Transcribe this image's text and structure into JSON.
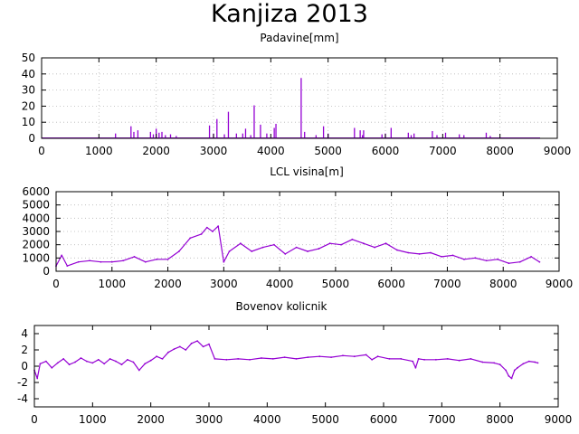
{
  "title": "Kanjiza 2013",
  "colors": {
    "series": "#9400d3",
    "axis": "#000000",
    "grid": "#b8b8b8"
  },
  "chart_data": [
    {
      "type": "bar",
      "subtitle": "Padavine[mm]",
      "xlim": [
        0,
        9000
      ],
      "ylim": [
        0,
        50
      ],
      "xticks": [
        0,
        1000,
        2000,
        3000,
        4000,
        5000,
        6000,
        7000,
        8000,
        9000
      ],
      "yticks": [
        0,
        10,
        20,
        30,
        40,
        50
      ],
      "grid": true,
      "series": [
        {
          "x": [
            1290,
            1560,
            1610,
            1680,
            1900,
            1950,
            2000,
            2050,
            2100,
            2160,
            2250,
            2350,
            2930,
            3000,
            3060,
            3190,
            3260,
            3400,
            3510,
            3560,
            3650,
            3710,
            3820,
            3930,
            4060,
            4090,
            4530,
            4590,
            4790,
            4920,
            5000,
            5460,
            5560,
            5600,
            5620,
            5940,
            6000,
            6100,
            6400,
            6450,
            6500,
            6820,
            6900,
            7050,
            7290,
            7370,
            7760,
            7830
          ],
          "y": [
            3,
            7.5,
            4,
            5,
            4,
            2.5,
            6,
            3.5,
            4,
            2,
            2.5,
            1.5,
            8,
            3,
            12,
            2.5,
            16.5,
            3,
            3,
            6,
            2,
            20.5,
            8.5,
            3,
            6.5,
            9,
            37.5,
            4,
            2,
            7.5,
            3,
            6.5,
            5,
            2,
            5,
            2.5,
            3,
            6.5,
            3.5,
            2,
            3,
            4.5,
            2,
            3.5,
            2.5,
            2,
            3.5,
            1.5
          ]
        }
      ]
    },
    {
      "type": "line",
      "subtitle": "LCL visina[m]",
      "xlim": [
        0,
        9000
      ],
      "ylim": [
        0,
        6000
      ],
      "xticks": [
        0,
        1000,
        2000,
        3000,
        4000,
        5000,
        6000,
        7000,
        8000,
        9000
      ],
      "yticks": [
        0,
        1000,
        2000,
        3000,
        4000,
        5000,
        6000
      ],
      "grid": true,
      "series": [
        {
          "x": [
            0,
            100,
            200,
            400,
            600,
            800,
            1000,
            1200,
            1400,
            1600,
            1800,
            2000,
            2200,
            2400,
            2600,
            2700,
            2800,
            2900,
            3000,
            3100,
            3300,
            3500,
            3700,
            3900,
            4100,
            4300,
            4500,
            4700,
            4900,
            5100,
            5300,
            5500,
            5700,
            5900,
            6100,
            6300,
            6500,
            6700,
            6900,
            7100,
            7300,
            7500,
            7700,
            7900,
            8100,
            8300,
            8500,
            8650
          ],
          "y": [
            400,
            1200,
            400,
            700,
            800,
            700,
            700,
            800,
            1100,
            700,
            900,
            900,
            1500,
            2500,
            2800,
            3300,
            3000,
            3400,
            700,
            1500,
            2100,
            1500,
            1800,
            2000,
            1300,
            1800,
            1500,
            1700,
            2100,
            2000,
            2400,
            2100,
            1800,
            2100,
            1600,
            1400,
            1300,
            1400,
            1100,
            1200,
            900,
            1000,
            800,
            900,
            600,
            700,
            1100,
            700
          ]
        }
      ]
    },
    {
      "type": "line",
      "subtitle": "Bovenov kolicnik",
      "xlim": [
        0,
        9000
      ],
      "ylim": [
        -5,
        5
      ],
      "xticks": [
        0,
        1000,
        2000,
        3000,
        4000,
        5000,
        6000,
        7000,
        8000,
        9000
      ],
      "yticks": [
        -4,
        -2,
        0,
        2,
        4
      ],
      "grid": false,
      "series": [
        {
          "x": [
            0,
            50,
            100,
            200,
            300,
            400,
            500,
            600,
            700,
            800,
            900,
            1000,
            1100,
            1200,
            1300,
            1400,
            1500,
            1600,
            1700,
            1800,
            1900,
            2000,
            2100,
            2200,
            2300,
            2400,
            2500,
            2600,
            2700,
            2800,
            2900,
            3000,
            3100,
            3300,
            3500,
            3700,
            3900,
            4100,
            4300,
            4500,
            4700,
            4900,
            5100,
            5300,
            5500,
            5700,
            5800,
            5900,
            6100,
            6300,
            6500,
            6550,
            6600,
            6700,
            6900,
            7100,
            7300,
            7500,
            7700,
            7900,
            8000,
            8100,
            8150,
            8200,
            8250,
            8300,
            8400,
            8500,
            8600,
            8650
          ],
          "y": [
            -0.5,
            -1.5,
            0.3,
            0.6,
            -0.2,
            0.4,
            0.9,
            0.2,
            0.5,
            1,
            0.6,
            0.4,
            0.8,
            0.3,
            0.9,
            0.6,
            0.2,
            0.8,
            0.5,
            -0.5,
            0.3,
            0.7,
            1.2,
            0.9,
            1.7,
            2.1,
            2.4,
            2,
            2.8,
            3.1,
            2.4,
            2.7,
            0.9,
            0.8,
            0.9,
            0.8,
            1,
            0.9,
            1.1,
            0.9,
            1.1,
            1.2,
            1.1,
            1.3,
            1.2,
            1.4,
            0.8,
            1.2,
            0.9,
            0.9,
            0.6,
            -0.2,
            0.9,
            0.8,
            0.8,
            0.9,
            0.7,
            0.9,
            0.5,
            0.4,
            0.2,
            -0.5,
            -1.2,
            -1.5,
            -0.5,
            -0.2,
            0.3,
            0.6,
            0.5,
            0.4
          ]
        }
      ]
    }
  ]
}
